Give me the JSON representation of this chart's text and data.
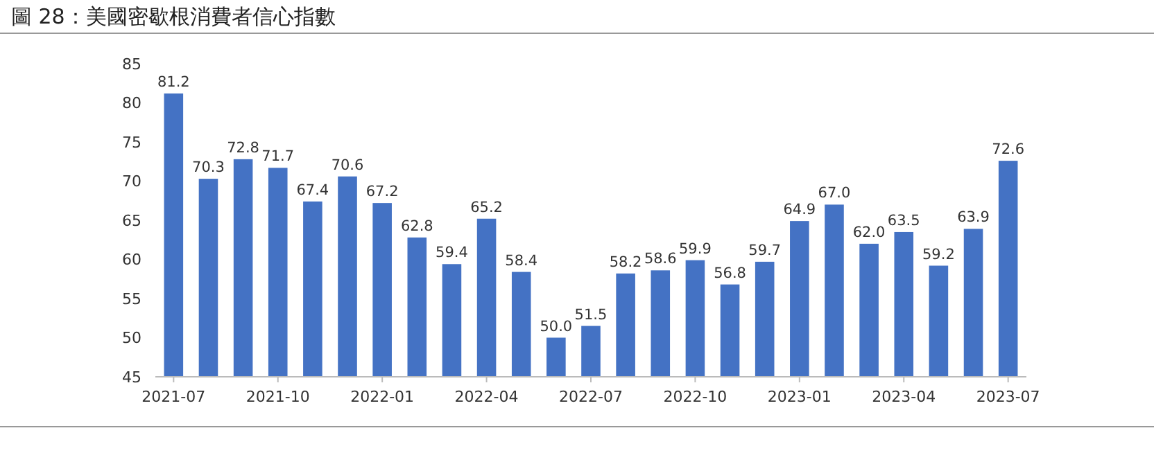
{
  "chart_data": {
    "type": "bar",
    "title": "圖 28：美國密歇根消費者信心指數",
    "categories": [
      "2021-07",
      null,
      null,
      "2021-10",
      null,
      null,
      "2022-01",
      null,
      null,
      "2022-04",
      null,
      null,
      "2022-07",
      null,
      null,
      "2022-10",
      null,
      null,
      "2023-01",
      null,
      null,
      "2023-04",
      null,
      null,
      "2023-07"
    ],
    "values": [
      81.2,
      70.3,
      72.8,
      71.7,
      67.4,
      70.6,
      67.2,
      62.8,
      59.4,
      65.2,
      58.4,
      50.0,
      51.5,
      58.2,
      58.6,
      59.9,
      56.8,
      59.7,
      64.9,
      67.0,
      62.0,
      63.5,
      59.2,
      63.9,
      72.6
    ],
    "value_labels": [
      "81.2",
      "70.3",
      "72.8",
      "71.7",
      "67.4",
      "70.6",
      "67.2",
      "62.8",
      "59.4",
      "65.2",
      "58.4",
      "50.0",
      "51.5",
      "58.2",
      "58.6",
      "59.9",
      "56.8",
      "59.7",
      "64.9",
      "67.0",
      "62.0",
      "63.5",
      "59.2",
      "63.9",
      "72.6"
    ],
    "color": "#4472c4",
    "ylim": [
      45,
      85
    ],
    "yticks": [
      45,
      50,
      55,
      60,
      65,
      70,
      75,
      80,
      85
    ],
    "grid": false
  }
}
